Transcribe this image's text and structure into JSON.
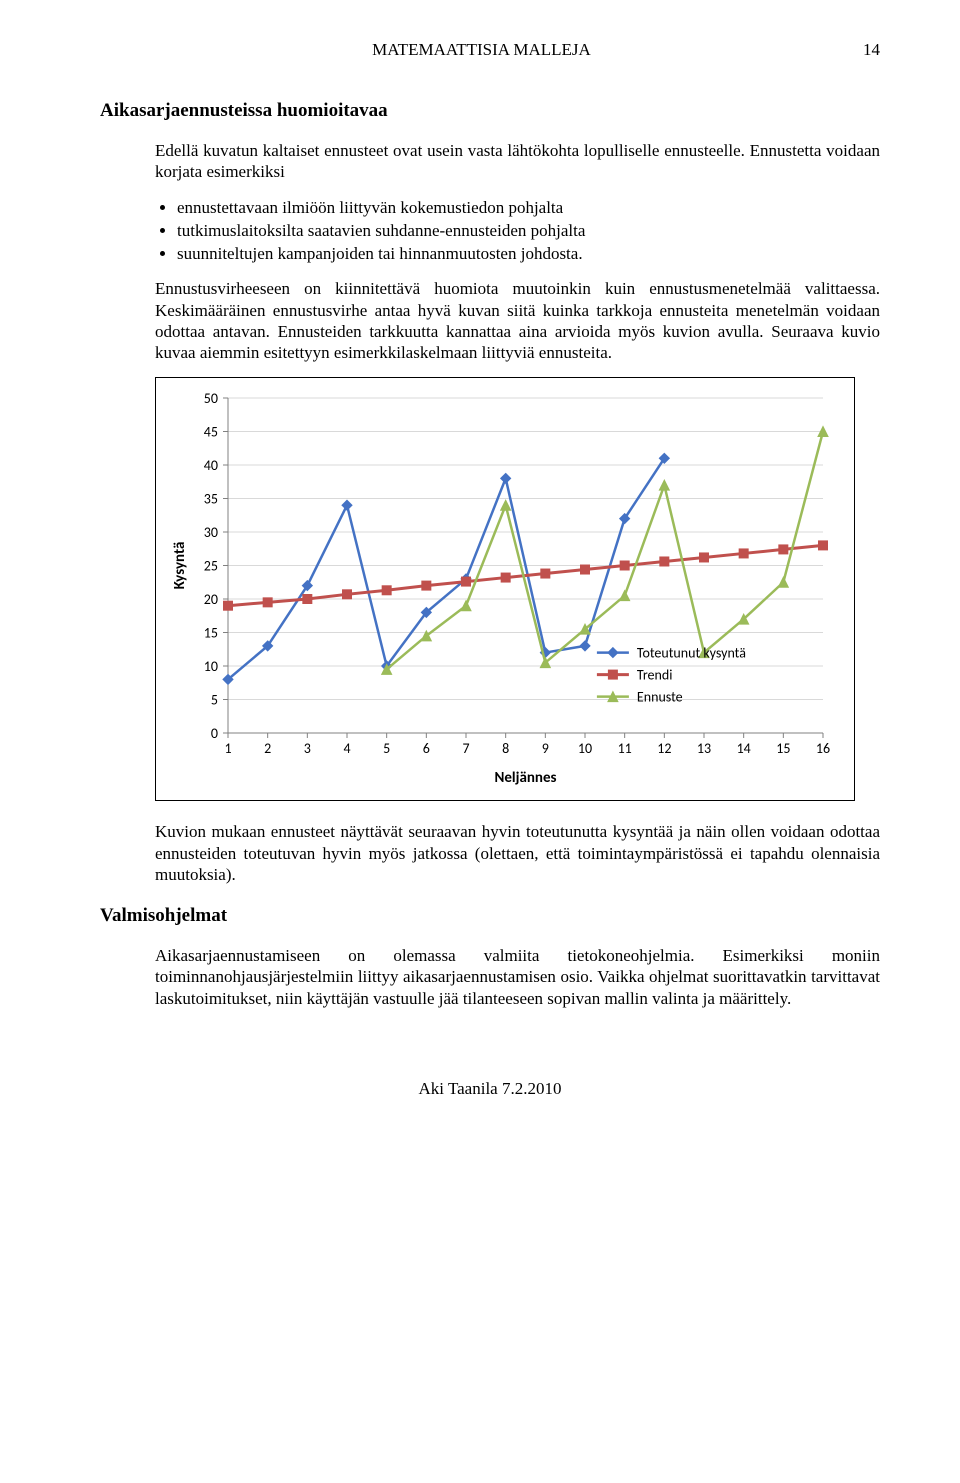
{
  "header": {
    "running_title": "MATEMAATTISIA MALLEJA",
    "page_number": "14"
  },
  "section1": {
    "title": "Aikasarjaennusteissa huomioitavaa",
    "p1": "Edellä kuvatun kaltaiset ennusteet ovat usein vasta lähtökohta lopulliselle ennusteelle. Ennustetta voidaan korjata esimerkiksi",
    "bullets": [
      "ennustettavaan ilmiöön liittyvän kokemustiedon pohjalta",
      "tutkimuslaitoksilta saatavien suhdanne-ennusteiden pohjalta",
      "suunniteltujen kampanjoiden tai hinnanmuutosten johdosta."
    ],
    "p2": "Ennustusvirheeseen on kiinnitettävä huomiota muutoinkin kuin ennustusmenetelmää valittaessa. Keskimääräinen ennustusvirhe antaa hyvä kuvan siitä kuinka tarkkoja ennusteita menetelmän voidaan odottaa antavan. Ennusteiden tarkkuutta kannattaa aina arvioida myös kuvion avulla. Seuraava kuvio kuvaa aiemmin esitettyyn esimerkkilaskelmaan liittyviä ennusteita."
  },
  "chart": {
    "type": "line",
    "y_label": "Kysyntä",
    "x_label": "Neljännes",
    "x_values": [
      1,
      2,
      3,
      4,
      5,
      6,
      7,
      8,
      9,
      10,
      11,
      12,
      13,
      14,
      15,
      16
    ],
    "y_min": 0,
    "y_max": 50,
    "y_tick_step": 5,
    "x_min": 1,
    "x_max": 16,
    "background_color": "#ffffff",
    "grid_color": "#d9d9d9",
    "axis_color": "#808080",
    "series": [
      {
        "name": "Toteutunut kysyntä",
        "color": "#4472c4",
        "marker": "diamond",
        "marker_size": 10,
        "line_width": 2.5,
        "values": [
          8,
          13,
          22,
          34,
          10,
          18,
          23,
          38,
          12,
          13,
          32,
          41,
          null,
          null,
          null,
          null
        ]
      },
      {
        "name": "Trendi",
        "color": "#c0504d",
        "marker": "square",
        "marker_size": 9,
        "line_width": 3,
        "values": [
          19,
          19.5,
          20,
          20.7,
          21.3,
          22,
          22.6,
          23.2,
          23.8,
          24.4,
          25,
          25.6,
          26.2,
          26.8,
          27.4,
          28
        ]
      },
      {
        "name": "Ennuste",
        "color": "#9bbb59",
        "marker": "triangle",
        "marker_size": 10,
        "line_width": 2.5,
        "values": [
          null,
          null,
          null,
          null,
          9.5,
          14.5,
          19,
          34,
          10.5,
          15.5,
          20.5,
          37,
          12,
          17,
          22.5,
          45
        ]
      }
    ],
    "legend_position": "bottom-right-inside"
  },
  "section1_after_chart": {
    "p3": "Kuvion mukaan ennusteet näyttävät seuraavan hyvin toteutunutta kysyntää ja näin ollen voidaan odottaa ennusteiden toteutuvan hyvin myös jatkossa (olettaen, että toimintaympäristössä ei tapahdu olennaisia muutoksia)."
  },
  "section2": {
    "title": "Valmisohjelmat",
    "p1": "Aikasarjaennustamiseen on olemassa valmiita tietokoneohjelmia. Esimerkiksi moniin toiminnanohjausjärjestelmiin liittyy aikasarjaennustamisen osio. Vaikka ohjelmat suorittavatkin tarvittavat laskutoimitukset, niin käyttäjän vastuulle jää tilanteeseen sopivan mallin valinta ja määrittely."
  },
  "footer": {
    "text": "Aki Taanila 7.2.2010"
  }
}
